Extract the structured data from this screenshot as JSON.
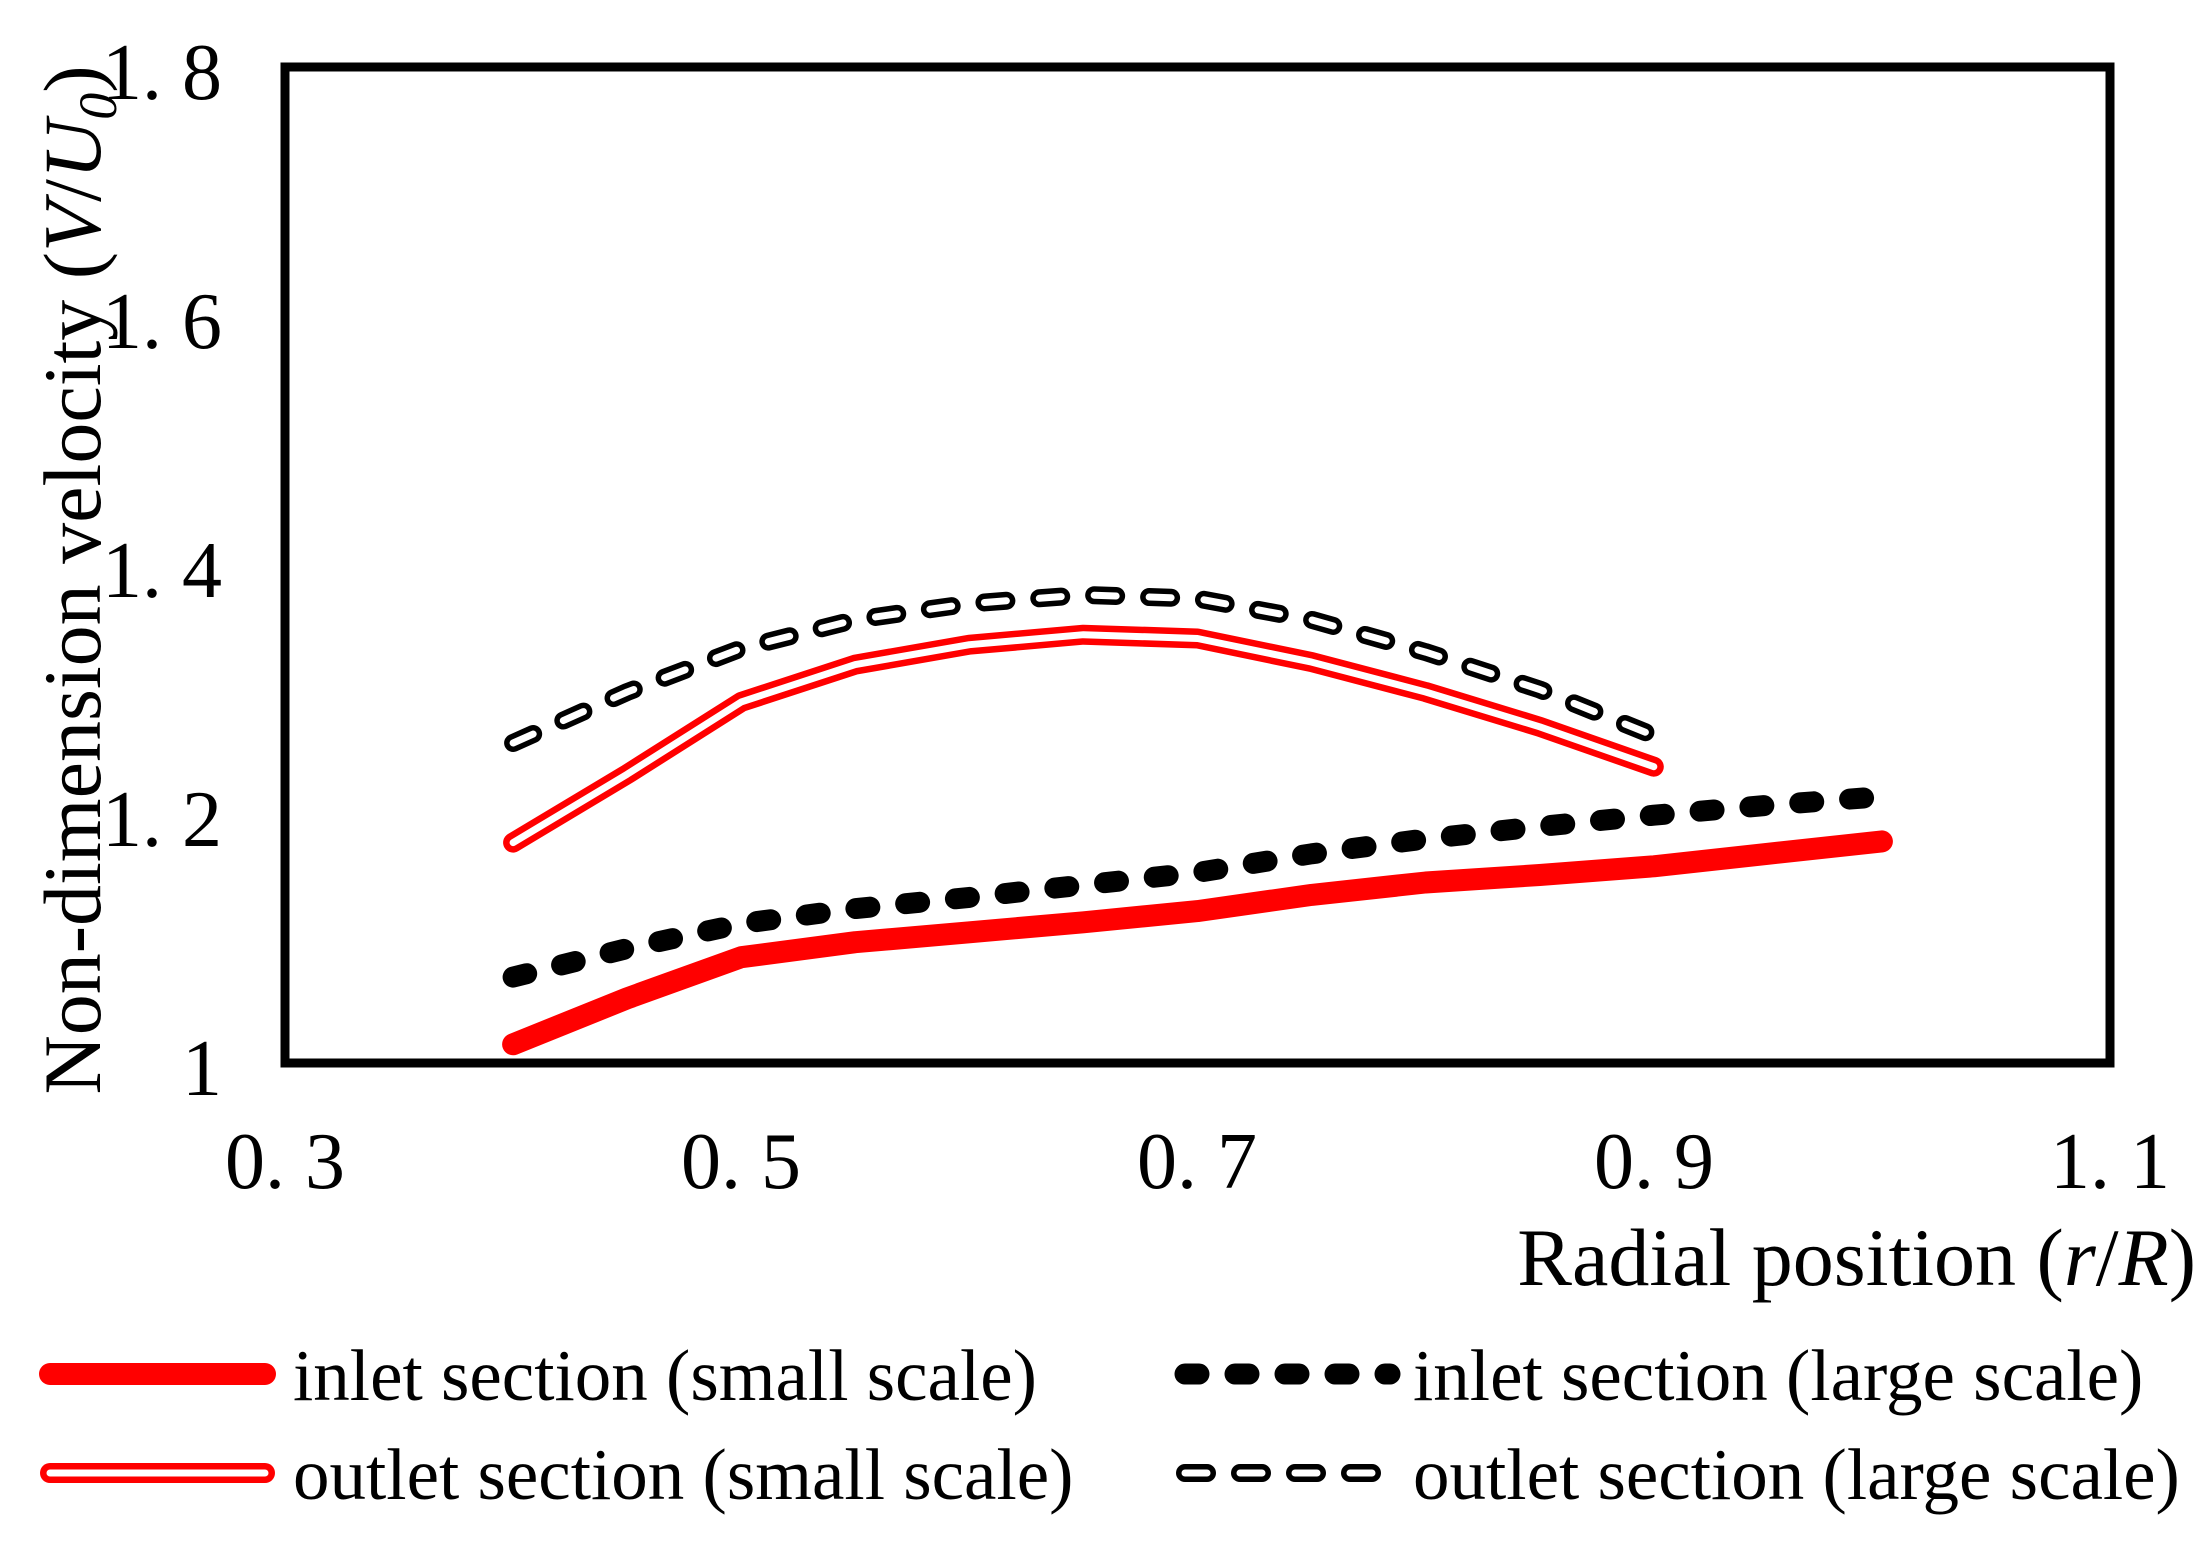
{
  "figure": {
    "background": "#FFFFFF",
    "axis_color": "#000000",
    "accent_red": "#FF0000",
    "y_axis": {
      "title_prefix": "Non-dimension velocity (",
      "title_var1": "V",
      "title_slash": "/",
      "title_var2": "U",
      "title_subscript": "0",
      "title_suffix": ")",
      "ticks": [
        {
          "value": 1.0,
          "label": "1"
        },
        {
          "value": 1.2,
          "label": "1. 2"
        },
        {
          "value": 1.4,
          "label": "1. 4"
        },
        {
          "value": 1.6,
          "label": "1. 6"
        },
        {
          "value": 1.8,
          "label": "1. 8"
        }
      ]
    },
    "x_axis": {
      "title_prefix": "Radial position (",
      "title_var1": "r",
      "title_slash": "/",
      "title_var2": "R",
      "title_suffix": ")",
      "ticks": [
        {
          "value": 0.3,
          "label": "0. 3"
        },
        {
          "value": 0.5,
          "label": "0. 5"
        },
        {
          "value": 0.7,
          "label": "0. 7"
        },
        {
          "value": 0.9,
          "label": "0. 9"
        },
        {
          "value": 1.1,
          "label": "1. 1"
        }
      ]
    },
    "legend": [
      {
        "label": "inlet section (small scale)",
        "style": "thick-solid",
        "color": "#FF0000"
      },
      {
        "label": "outlet section (small scale)",
        "style": "double-line",
        "color": "#FF0000"
      },
      {
        "label": "inlet section (large scale)",
        "style": "thick-dashed",
        "color": "#000000"
      },
      {
        "label": "outlet section (large scale)",
        "style": "hollow-dashed",
        "color": "#000000"
      }
    ]
  },
  "chart_data": {
    "type": "line",
    "title": "",
    "xlabel": "Radial position (r/R)",
    "ylabel": "Non-dimension velocity (V/U0)",
    "xlim": [
      0.3,
      1.1
    ],
    "ylim": [
      1.0,
      1.8
    ],
    "x_ticks": [
      0.3,
      0.5,
      0.7,
      0.9,
      1.1
    ],
    "y_ticks": [
      1.0,
      1.2,
      1.4,
      1.6,
      1.8
    ],
    "grid": false,
    "legend_position": "below chart, two columns",
    "series": [
      {
        "name": "inlet section (small scale)",
        "line_style": "thick-solid",
        "color": "#FF0000",
        "x": [
          0.4,
          0.45,
          0.5,
          0.55,
          0.6,
          0.65,
          0.7,
          0.75,
          0.8,
          0.85,
          0.9,
          0.95,
          1.0
        ],
        "y": [
          1.015,
          1.052,
          1.085,
          1.097,
          1.105,
          1.113,
          1.122,
          1.135,
          1.145,
          1.151,
          1.158,
          1.168,
          1.178
        ]
      },
      {
        "name": "inlet section (large scale)",
        "line_style": "thick-dashed",
        "color": "#000000",
        "x": [
          0.4,
          0.45,
          0.5,
          0.55,
          0.6,
          0.65,
          0.7,
          0.75,
          0.8,
          0.85,
          0.9,
          0.95,
          1.0
        ],
        "y": [
          1.069,
          1.092,
          1.112,
          1.124,
          1.133,
          1.143,
          1.153,
          1.168,
          1.18,
          1.19,
          1.199,
          1.207,
          1.214
        ]
      },
      {
        "name": "outlet section (small scale)",
        "line_style": "double-line",
        "color": "#FF0000",
        "x": [
          0.4,
          0.45,
          0.5,
          0.55,
          0.6,
          0.65,
          0.7,
          0.75,
          0.8,
          0.85,
          0.9
        ],
        "y": [
          1.177,
          1.232,
          1.29,
          1.32,
          1.336,
          1.344,
          1.341,
          1.322,
          1.298,
          1.27,
          1.238
        ]
      },
      {
        "name": "outlet section (large scale)",
        "line_style": "hollow-dashed",
        "color": "#000000",
        "x": [
          0.4,
          0.45,
          0.5,
          0.55,
          0.6,
          0.65,
          0.7,
          0.75,
          0.8,
          0.85,
          0.9
        ],
        "y": [
          1.257,
          1.298,
          1.333,
          1.356,
          1.369,
          1.376,
          1.373,
          1.356,
          1.33,
          1.3,
          1.263
        ]
      }
    ]
  }
}
